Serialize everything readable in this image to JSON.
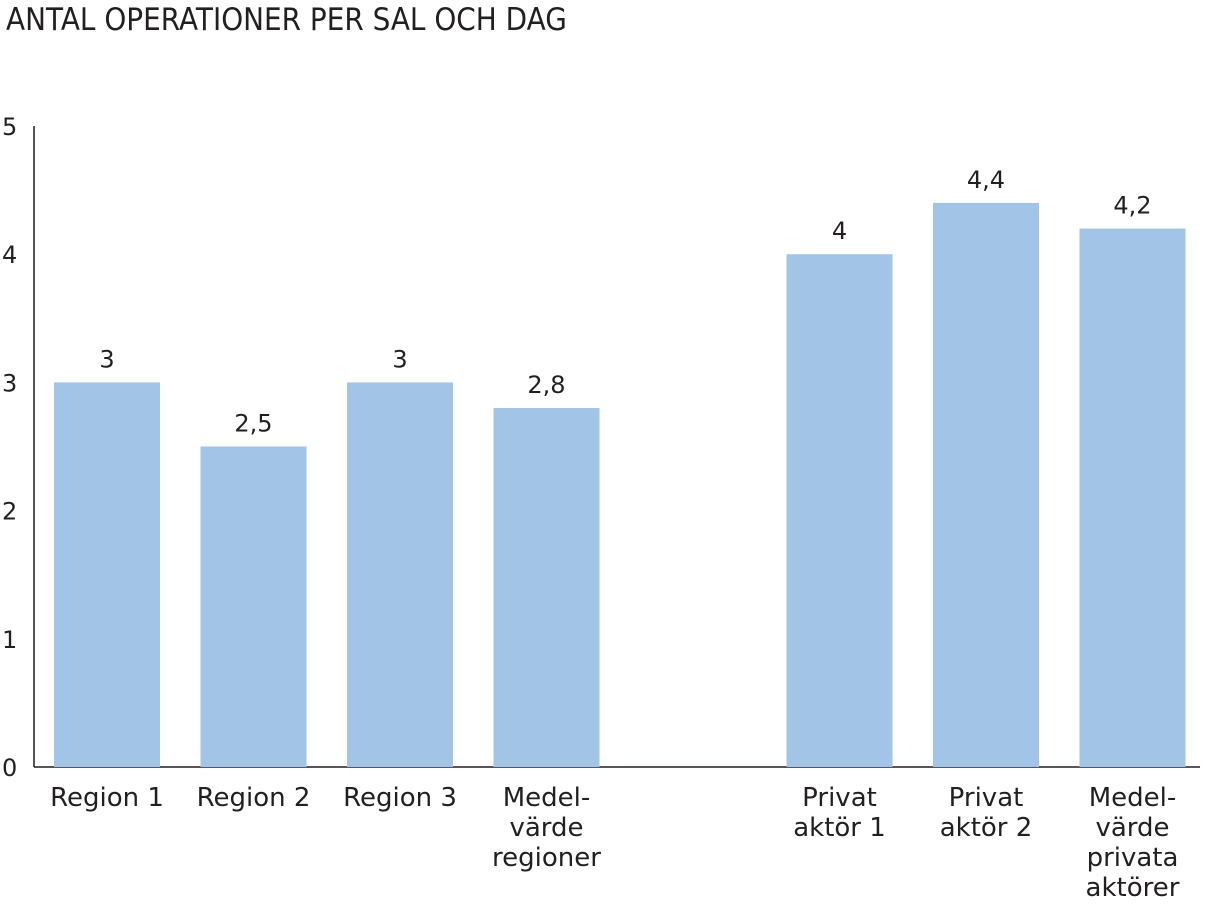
{
  "chart_data": {
    "type": "bar",
    "title": "ANTAL OPERATIONER PER SAL OCH DAG",
    "xlabel": "",
    "ylabel": "",
    "ylim": [
      0,
      5
    ],
    "yticks": [
      "0",
      "1",
      "2",
      "3",
      "4",
      "5"
    ],
    "grid": false,
    "bar_color": "#a2c4e6",
    "categories": [
      {
        "label": "Region 1",
        "lines": [
          "Region 1"
        ],
        "value": 3,
        "value_label": "3"
      },
      {
        "label": "Region 2",
        "lines": [
          "Region 2"
        ],
        "value": 2.5,
        "value_label": "2,5"
      },
      {
        "label": "Region 3",
        "lines": [
          "Region 3"
        ],
        "value": 3,
        "value_label": "3"
      },
      {
        "label": "Medel-värde regioner",
        "lines": [
          "Medel-",
          "värde",
          "regioner"
        ],
        "value": 2.8,
        "value_label": "2,8"
      },
      {
        "label": "",
        "lines": [],
        "value": null,
        "value_label": ""
      },
      {
        "label": "Privat aktör 1",
        "lines": [
          "Privat",
          "aktör 1"
        ],
        "value": 4,
        "value_label": "4"
      },
      {
        "label": "Privat aktör 2",
        "lines": [
          "Privat",
          "aktör 2"
        ],
        "value": 4.4,
        "value_label": "4,4"
      },
      {
        "label": "Medel-värde privata aktörer",
        "lines": [
          "Medel-",
          "värde",
          "privata",
          "aktörer"
        ],
        "value": 4.2,
        "value_label": "4,2"
      }
    ]
  }
}
